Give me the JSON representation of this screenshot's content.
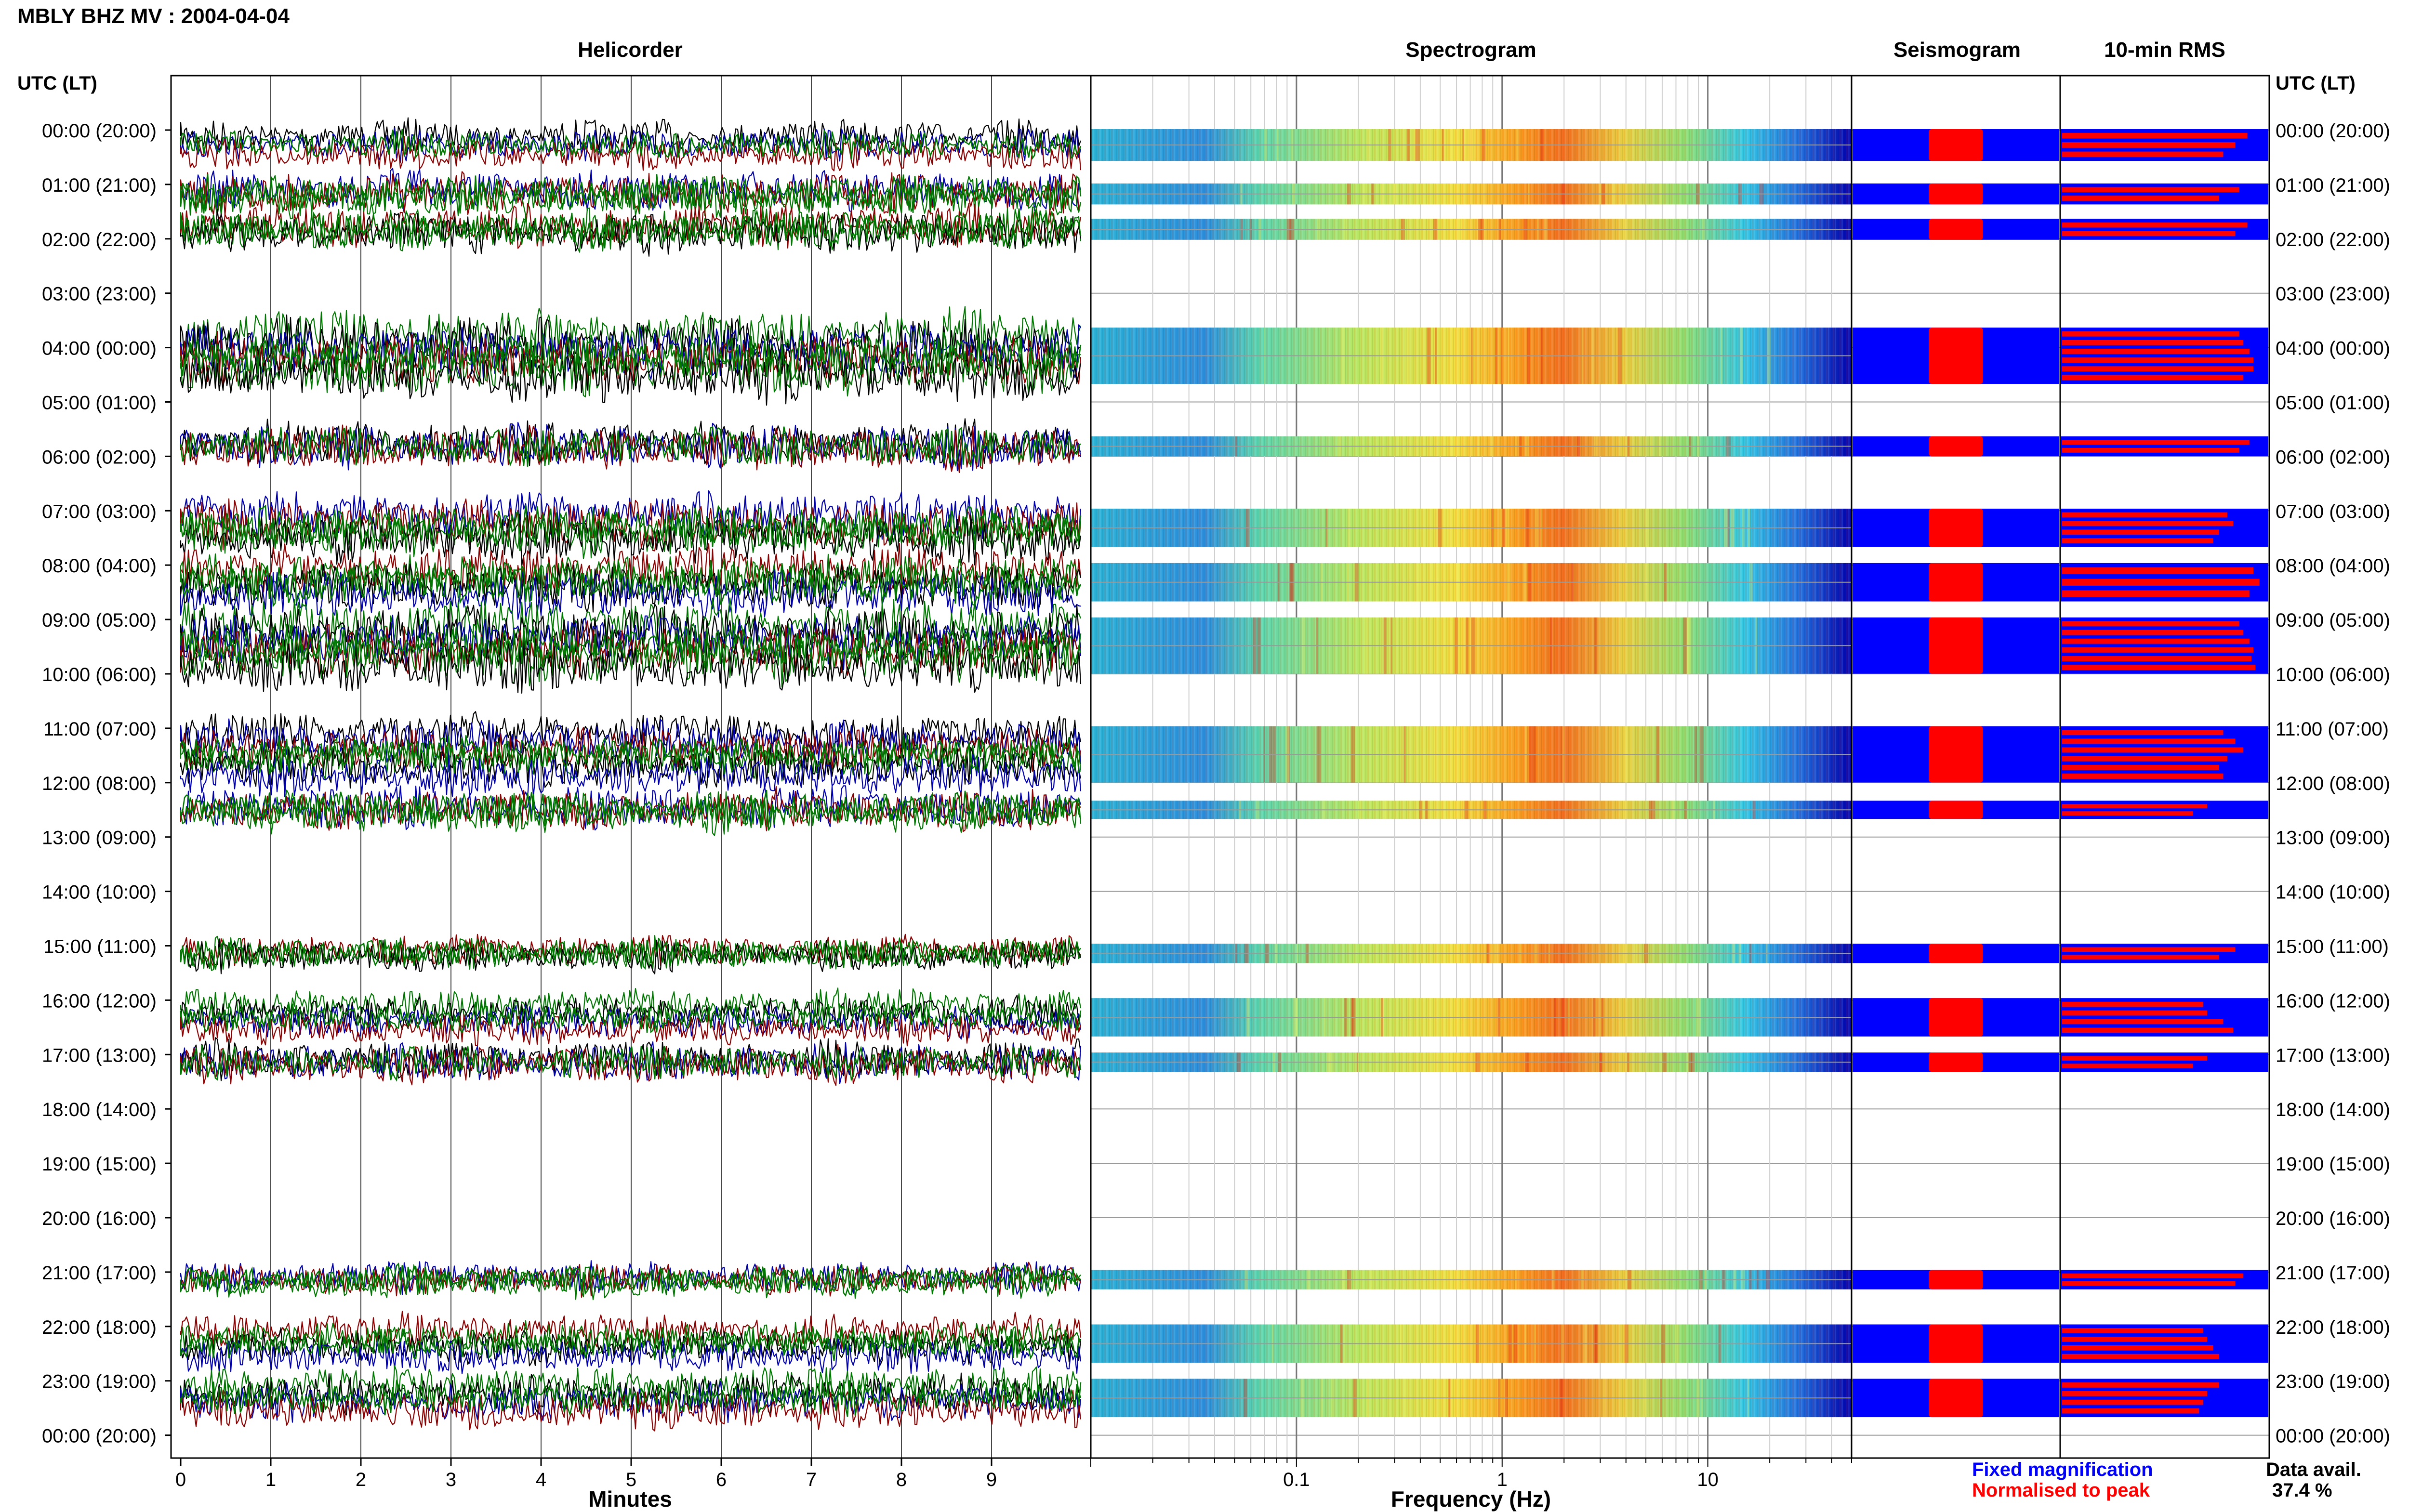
{
  "header": {
    "title": "MBLY BHZ MV : 2004-04-04",
    "panels": [
      "Helicorder",
      "Spectrogram",
      "Seismogram",
      "10-min RMS"
    ]
  },
  "axis": {
    "left_label": "UTC (LT)",
    "right_label": "UTC (LT)",
    "helicorder_xlabel": "Minutes",
    "spectrogram_xlabel": "Frequency (Hz)"
  },
  "legend": {
    "fixed": "Fixed magnification",
    "normalised": "Normalised to peak",
    "fixed_color": "#0000ff",
    "normalised_color": "#ff0000"
  },
  "availability": {
    "label": "Data avail.",
    "value": "37.4 %"
  },
  "chart_data": {
    "type": "heatmap",
    "rows": [
      "00:00 (20:00)",
      "01:00 (21:00)",
      "02:00 (22:00)",
      "03:00 (23:00)",
      "04:00 (00:00)",
      "05:00 (01:00)",
      "06:00 (02:00)",
      "07:00 (03:00)",
      "08:00 (04:00)",
      "09:00 (05:00)",
      "10:00 (06:00)",
      "11:00 (07:00)",
      "12:00 (08:00)",
      "13:00 (09:00)",
      "14:00 (10:00)",
      "15:00 (11:00)",
      "16:00 (12:00)",
      "17:00 (13:00)",
      "18:00 (14:00)",
      "19:00 (15:00)",
      "20:00 (16:00)",
      "21:00 (17:00)",
      "22:00 (18:00)",
      "23:00 (19:00)",
      "00:00 (20:00)"
    ],
    "minute_ticks": [
      "0",
      "1",
      "2",
      "3",
      "4",
      "5",
      "6",
      "7",
      "8",
      "9"
    ],
    "minute_range": [
      0,
      10
    ],
    "freq_ticks": [
      {
        "value": 0.1,
        "label": "0.1"
      },
      {
        "value": 1,
        "label": "1"
      },
      {
        "value": 10,
        "label": "10"
      }
    ],
    "freq_range": [
      0.01,
      50
    ],
    "freq_scale": "log",
    "helicorder_colors": [
      "#000000",
      "#0000aa",
      "#8b0000",
      "#007700"
    ],
    "data_segments": [
      {
        "start": 0.0,
        "end": 0.55,
        "heli_amp": 1.0,
        "rms": [
          0.92,
          0.86,
          0.8
        ]
      },
      {
        "start": 1.0,
        "end": 1.35,
        "heli_amp": 1.3,
        "rms": [
          0.88,
          0.78
        ]
      },
      {
        "start": 1.65,
        "end": 2.0,
        "heli_amp": 1.3,
        "rms": [
          0.92,
          0.86
        ]
      },
      {
        "start": 3.65,
        "end": 4.65,
        "heli_amp": 1.6,
        "rms": [
          0.88,
          0.9,
          0.93,
          0.95,
          0.95,
          0.9
        ]
      },
      {
        "start": 5.65,
        "end": 5.98,
        "heli_amp": 1.4,
        "rms": [
          0.93,
          0.88
        ]
      },
      {
        "start": 6.98,
        "end": 7.65,
        "heli_amp": 1.5,
        "rms": [
          0.82,
          0.85,
          0.78,
          0.75
        ]
      },
      {
        "start": 7.98,
        "end": 8.65,
        "heli_amp": 1.5,
        "rms": [
          0.95,
          0.98,
          0.93
        ]
      },
      {
        "start": 8.98,
        "end": 9.98,
        "heli_amp": 1.6,
        "rms": [
          0.88,
          0.9,
          0.93,
          0.95,
          0.94,
          0.96
        ]
      },
      {
        "start": 10.98,
        "end": 11.98,
        "heli_amp": 1.3,
        "rms": [
          0.8,
          0.86,
          0.9,
          0.82,
          0.78,
          0.8
        ]
      },
      {
        "start": 12.35,
        "end": 12.65,
        "heli_amp": 1.3,
        "rms": [
          0.72,
          0.65
        ]
      },
      {
        "start": 14.98,
        "end": 15.3,
        "heli_amp": 1.0,
        "rms": [
          0.86,
          0.78
        ]
      },
      {
        "start": 15.98,
        "end": 16.65,
        "heli_amp": 1.0,
        "rms": [
          0.7,
          0.72,
          0.8,
          0.85
        ]
      },
      {
        "start": 16.98,
        "end": 17.3,
        "heli_amp": 1.2,
        "rms": [
          0.72,
          0.65
        ]
      },
      {
        "start": 20.98,
        "end": 21.3,
        "heli_amp": 1.0,
        "rms": [
          0.9,
          0.86
        ]
      },
      {
        "start": 21.98,
        "end": 22.65,
        "heli_amp": 1.1,
        "rms": [
          0.7,
          0.72,
          0.75,
          0.78
        ]
      },
      {
        "start": 22.98,
        "end": 23.65,
        "heli_amp": 1.2,
        "rms": [
          0.78,
          0.72,
          0.7,
          0.68
        ]
      }
    ]
  }
}
